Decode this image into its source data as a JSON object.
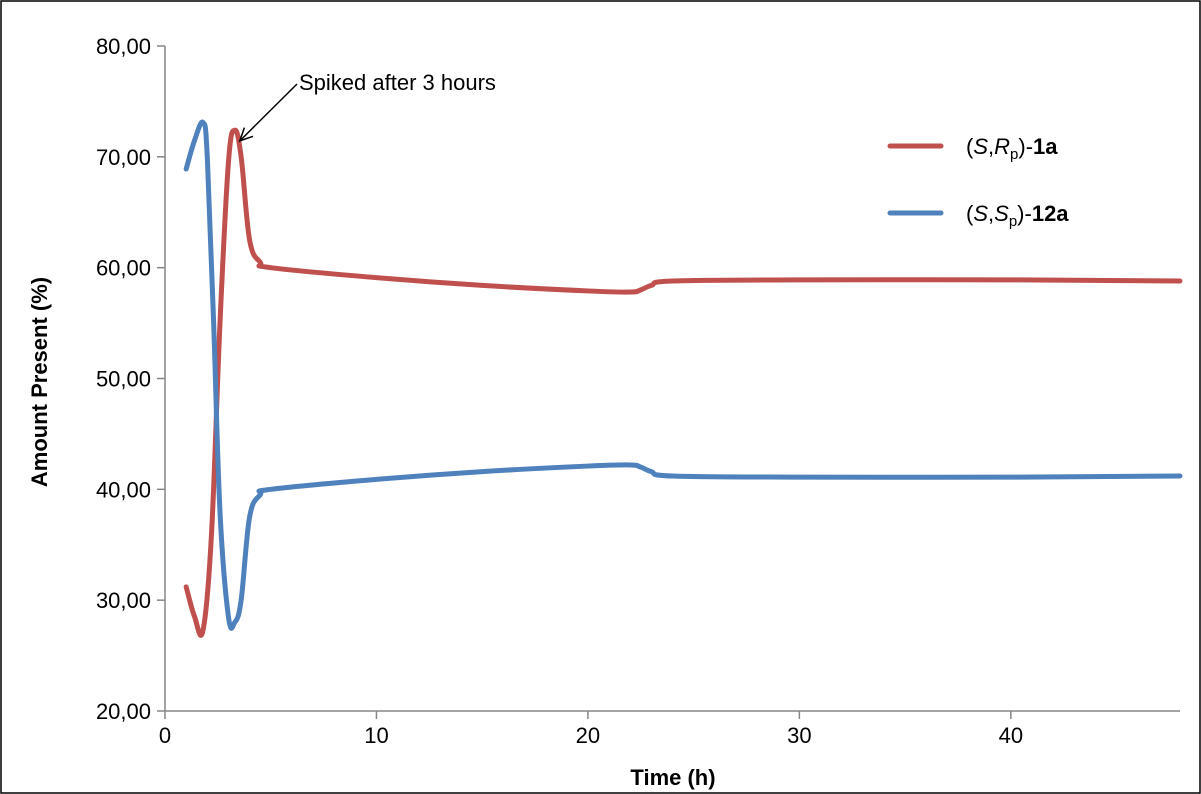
{
  "chart_data": {
    "type": "line",
    "title": "",
    "xlabel": "Time (h)",
    "ylabel": "Amount Present (%)",
    "xlim": [
      0,
      48
    ],
    "ylim": [
      20,
      80
    ],
    "x_ticks": [
      0,
      10,
      20,
      30,
      40
    ],
    "x_tick_labels": [
      "0",
      "10",
      "20",
      "30",
      "40"
    ],
    "y_ticks": [
      20,
      30,
      40,
      50,
      60,
      70,
      80
    ],
    "y_tick_labels": [
      "20,00",
      "30,00",
      "40,00",
      "50,00",
      "60,00",
      "70,00",
      "80,00"
    ],
    "grid": false,
    "legend_position": "top-right",
    "annotation": {
      "text": "Spiked after 3 hours",
      "x": 3.3,
      "y": 71.8
    },
    "series": [
      {
        "name": "(S,Rp)-1a",
        "label_parts": {
          "open": "(",
          "s": "S",
          "comma": ",",
          "r": "R",
          "sub": "p",
          "close": ")-",
          "compound": "1a"
        },
        "color": "#c0504d",
        "x": [
          1.0,
          1.4,
          1.8,
          2.2,
          2.6,
          3.0,
          3.3,
          3.6,
          4.0,
          4.5,
          5.0,
          10.0,
          15.0,
          20.0,
          22.0,
          22.5,
          23.0,
          24.0,
          30.0,
          40.0,
          48.0
        ],
        "y": [
          31.2,
          28.5,
          27.3,
          36.0,
          55.0,
          69.5,
          72.4,
          70.0,
          62.5,
          60.5,
          60.0,
          59.1,
          58.4,
          57.9,
          57.8,
          58.0,
          58.4,
          58.8,
          58.9,
          58.9,
          58.8
        ]
      },
      {
        "name": "(S,Sp)-12a",
        "label_parts": {
          "open": "(",
          "s": "S",
          "comma": ",",
          "r": "S",
          "sub": "p",
          "close": ")-",
          "compound": "12a"
        },
        "color": "#4f81bd",
        "x": [
          1.0,
          1.4,
          1.8,
          2.0,
          2.3,
          2.6,
          3.0,
          3.3,
          3.6,
          4.0,
          4.5,
          5.0,
          10.0,
          15.0,
          20.0,
          22.0,
          22.5,
          23.0,
          24.0,
          30.0,
          40.0,
          48.0
        ],
        "y": [
          68.9,
          71.5,
          73.1,
          70.0,
          55.0,
          38.0,
          28.5,
          28.0,
          30.0,
          37.5,
          39.5,
          40.0,
          40.9,
          41.6,
          42.1,
          42.2,
          42.0,
          41.6,
          41.2,
          41.1,
          41.1,
          41.2
        ]
      }
    ]
  }
}
